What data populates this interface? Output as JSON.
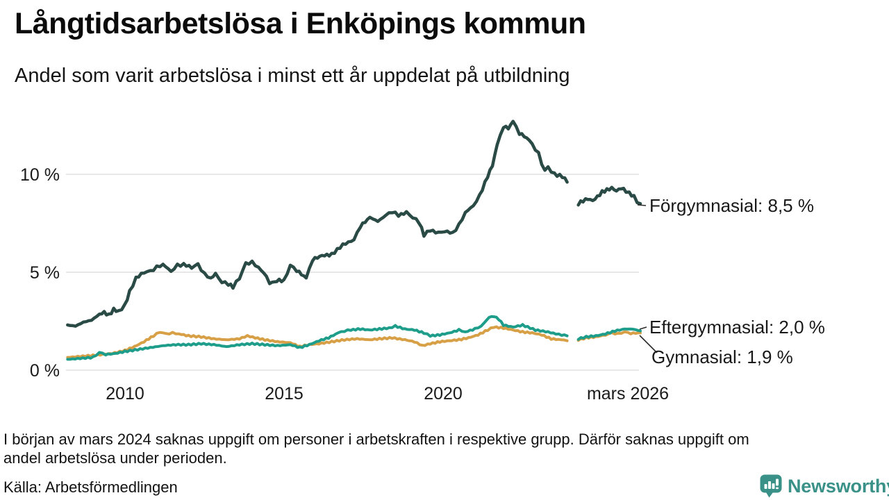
{
  "chart_data": {
    "type": "line",
    "title": "Långtidsarbetslösa i Enköpings kommun",
    "subtitle": "Andel som varit arbetslösa i minst ett år uppdelat på utbildning",
    "grid": true,
    "legend_position": "end-of-line-labels",
    "x_axis": {
      "range": [
        2008.15,
        2026.2
      ],
      "ticks": [
        {
          "label": "2010",
          "year": 2010
        },
        {
          "label": "2015",
          "year": 2015
        },
        {
          "label": "2020",
          "year": 2020
        },
        {
          "label": "mars 2026",
          "year": 2025.8
        }
      ]
    },
    "y_axis": {
      "range": [
        0,
        12.8
      ],
      "ticks": [
        {
          "label": "0 %",
          "value": 0
        },
        {
          "label": "5 %",
          "value": 5
        },
        {
          "label": "10 %",
          "value": 10
        }
      ]
    },
    "gap": {
      "from": 2023.9,
      "to": 2024.25
    },
    "wiggle": [
      0.07,
      0.035,
      0.035
    ],
    "series": [
      {
        "name": "Förgymnasial",
        "color": "#2a4a45",
        "end_label": "Förgymnasial: 8,5 %",
        "end_value": 8.5,
        "segments": [
          [
            [
              2008.2,
              2.3
            ],
            [
              2008.45,
              2.25
            ],
            [
              2008.7,
              2.45
            ],
            [
              2008.95,
              2.55
            ],
            [
              2009.2,
              2.85
            ],
            [
              2009.35,
              2.95
            ],
            [
              2009.5,
              2.8
            ],
            [
              2009.65,
              3.1
            ],
            [
              2009.8,
              3.0
            ],
            [
              2010.0,
              3.3
            ],
            [
              2010.15,
              4.0
            ],
            [
              2010.35,
              4.7
            ],
            [
              2010.6,
              5.0
            ],
            [
              2010.8,
              5.05
            ],
            [
              2011.0,
              5.25
            ],
            [
              2011.2,
              5.4
            ],
            [
              2011.45,
              5.05
            ],
            [
              2011.65,
              5.35
            ],
            [
              2011.85,
              5.4
            ],
            [
              2012.1,
              5.25
            ],
            [
              2012.3,
              5.4
            ],
            [
              2012.5,
              4.9
            ],
            [
              2012.7,
              4.7
            ],
            [
              2012.85,
              4.9
            ],
            [
              2013.05,
              4.5
            ],
            [
              2013.25,
              4.4
            ],
            [
              2013.4,
              4.25
            ],
            [
              2013.6,
              4.7
            ],
            [
              2013.8,
              5.45
            ],
            [
              2014.0,
              5.5
            ],
            [
              2014.2,
              5.25
            ],
            [
              2014.45,
              4.8
            ],
            [
              2014.55,
              4.45
            ],
            [
              2014.7,
              4.5
            ],
            [
              2014.85,
              4.6
            ],
            [
              2015.0,
              4.55
            ],
            [
              2015.2,
              5.35
            ],
            [
              2015.4,
              5.1
            ],
            [
              2015.7,
              4.7
            ],
            [
              2015.9,
              5.65
            ],
            [
              2016.2,
              5.85
            ],
            [
              2016.5,
              5.9
            ],
            [
              2016.85,
              6.4
            ],
            [
              2017.2,
              6.65
            ],
            [
              2017.4,
              7.35
            ],
            [
              2017.7,
              7.8
            ],
            [
              2017.95,
              7.6
            ],
            [
              2018.2,
              7.9
            ],
            [
              2018.4,
              8.1
            ],
            [
              2018.6,
              7.9
            ],
            [
              2018.85,
              8.05
            ],
            [
              2019.05,
              7.8
            ],
            [
              2019.25,
              7.55
            ],
            [
              2019.4,
              6.9
            ],
            [
              2019.6,
              7.15
            ],
            [
              2019.85,
              7.0
            ],
            [
              2020.05,
              7.1
            ],
            [
              2020.3,
              7.0
            ],
            [
              2020.5,
              7.4
            ],
            [
              2020.7,
              8.05
            ],
            [
              2020.95,
              8.4
            ],
            [
              2021.15,
              8.9
            ],
            [
              2021.4,
              9.9
            ],
            [
              2021.55,
              10.45
            ],
            [
              2021.7,
              11.5
            ],
            [
              2021.9,
              12.45
            ],
            [
              2022.05,
              12.35
            ],
            [
              2022.2,
              12.7
            ],
            [
              2022.4,
              12.1
            ],
            [
              2022.55,
              11.95
            ],
            [
              2022.7,
              11.75
            ],
            [
              2022.9,
              11.3
            ],
            [
              2023.0,
              11.05
            ],
            [
              2023.1,
              10.55
            ],
            [
              2023.2,
              10.2
            ],
            [
              2023.3,
              10.35
            ],
            [
              2023.5,
              10.0
            ],
            [
              2023.75,
              9.9
            ],
            [
              2023.9,
              9.6
            ]
          ],
          [
            [
              2024.25,
              8.5
            ],
            [
              2024.4,
              8.65
            ],
            [
              2024.55,
              8.75
            ],
            [
              2024.7,
              8.65
            ],
            [
              2024.85,
              8.85
            ],
            [
              2025.0,
              9.1
            ],
            [
              2025.15,
              9.2
            ],
            [
              2025.3,
              9.3
            ],
            [
              2025.45,
              9.15
            ],
            [
              2025.6,
              9.3
            ],
            [
              2025.75,
              9.15
            ],
            [
              2025.85,
              9.05
            ],
            [
              2026.0,
              8.85
            ],
            [
              2026.1,
              8.6
            ],
            [
              2026.2,
              8.5
            ]
          ]
        ]
      },
      {
        "name": "Eftergymnasial",
        "color": "#1d9d8a",
        "end_label": "Eftergymnasial: 2,0 %",
        "end_value": 2.0,
        "segments": [
          [
            [
              2008.2,
              0.55
            ],
            [
              2008.6,
              0.6
            ],
            [
              2009.0,
              0.65
            ],
            [
              2009.2,
              0.9
            ],
            [
              2009.4,
              0.8
            ],
            [
              2009.7,
              0.85
            ],
            [
              2010.0,
              0.95
            ],
            [
              2010.4,
              1.05
            ],
            [
              2010.8,
              1.15
            ],
            [
              2011.2,
              1.25
            ],
            [
              2011.6,
              1.3
            ],
            [
              2012.0,
              1.3
            ],
            [
              2012.4,
              1.35
            ],
            [
              2012.8,
              1.3
            ],
            [
              2013.2,
              1.2
            ],
            [
              2013.6,
              1.3
            ],
            [
              2014.0,
              1.35
            ],
            [
              2014.4,
              1.3
            ],
            [
              2014.8,
              1.25
            ],
            [
              2015.2,
              1.3
            ],
            [
              2015.5,
              1.15
            ],
            [
              2015.8,
              1.3
            ],
            [
              2016.1,
              1.5
            ],
            [
              2016.4,
              1.65
            ],
            [
              2016.7,
              1.9
            ],
            [
              2016.9,
              2.0
            ],
            [
              2017.1,
              2.05
            ],
            [
              2017.4,
              2.1
            ],
            [
              2017.7,
              2.05
            ],
            [
              2018.0,
              2.1
            ],
            [
              2018.3,
              2.15
            ],
            [
              2018.5,
              2.25
            ],
            [
              2018.8,
              2.1
            ],
            [
              2019.1,
              2.05
            ],
            [
              2019.4,
              1.9
            ],
            [
              2019.6,
              1.75
            ],
            [
              2019.9,
              1.8
            ],
            [
              2020.2,
              1.9
            ],
            [
              2020.5,
              2.05
            ],
            [
              2020.7,
              1.95
            ],
            [
              2021.0,
              2.1
            ],
            [
              2021.2,
              2.25
            ],
            [
              2021.45,
              2.7
            ],
            [
              2021.6,
              2.75
            ],
            [
              2021.75,
              2.6
            ],
            [
              2021.9,
              2.3
            ],
            [
              2022.2,
              2.2
            ],
            [
              2022.5,
              2.3
            ],
            [
              2022.9,
              2.05
            ],
            [
              2023.3,
              1.95
            ],
            [
              2023.55,
              1.85
            ],
            [
              2023.9,
              1.75
            ]
          ],
          [
            [
              2024.25,
              1.6
            ],
            [
              2024.5,
              1.7
            ],
            [
              2024.8,
              1.75
            ],
            [
              2025.1,
              1.85
            ],
            [
              2025.4,
              2.0
            ],
            [
              2025.7,
              2.1
            ],
            [
              2025.95,
              2.1
            ],
            [
              2026.2,
              2.0
            ]
          ]
        ]
      },
      {
        "name": "Gymnasial",
        "color": "#d7a047",
        "end_label": "Gymnasial: 1,9 %",
        "end_value": 1.9,
        "segments": [
          [
            [
              2008.2,
              0.65
            ],
            [
              2008.6,
              0.7
            ],
            [
              2009.0,
              0.75
            ],
            [
              2009.3,
              0.8
            ],
            [
              2009.6,
              0.85
            ],
            [
              2010.0,
              1.0
            ],
            [
              2010.3,
              1.2
            ],
            [
              2010.6,
              1.45
            ],
            [
              2010.9,
              1.75
            ],
            [
              2011.1,
              1.95
            ],
            [
              2011.3,
              1.85
            ],
            [
              2011.5,
              1.9
            ],
            [
              2011.7,
              1.85
            ],
            [
              2012.0,
              1.75
            ],
            [
              2012.4,
              1.7
            ],
            [
              2012.8,
              1.6
            ],
            [
              2013.2,
              1.55
            ],
            [
              2013.6,
              1.6
            ],
            [
              2013.85,
              1.75
            ],
            [
              2014.1,
              1.65
            ],
            [
              2014.4,
              1.55
            ],
            [
              2014.8,
              1.45
            ],
            [
              2015.2,
              1.4
            ],
            [
              2015.5,
              1.2
            ],
            [
              2015.8,
              1.3
            ],
            [
              2016.1,
              1.35
            ],
            [
              2016.5,
              1.45
            ],
            [
              2016.9,
              1.55
            ],
            [
              2017.3,
              1.6
            ],
            [
              2017.7,
              1.55
            ],
            [
              2018.0,
              1.6
            ],
            [
              2018.4,
              1.65
            ],
            [
              2018.8,
              1.55
            ],
            [
              2019.1,
              1.45
            ],
            [
              2019.35,
              1.25
            ],
            [
              2019.6,
              1.35
            ],
            [
              2019.9,
              1.45
            ],
            [
              2020.2,
              1.5
            ],
            [
              2020.5,
              1.55
            ],
            [
              2020.8,
              1.65
            ],
            [
              2021.1,
              1.8
            ],
            [
              2021.4,
              2.05
            ],
            [
              2021.6,
              2.2
            ],
            [
              2021.9,
              2.15
            ],
            [
              2022.2,
              2.05
            ],
            [
              2022.5,
              1.95
            ],
            [
              2022.8,
              1.9
            ],
            [
              2023.1,
              1.8
            ],
            [
              2023.4,
              1.6
            ],
            [
              2023.7,
              1.55
            ],
            [
              2023.9,
              1.5
            ]
          ],
          [
            [
              2024.25,
              1.55
            ],
            [
              2024.5,
              1.65
            ],
            [
              2024.8,
              1.7
            ],
            [
              2025.1,
              1.8
            ],
            [
              2025.3,
              1.9
            ],
            [
              2025.5,
              1.85
            ],
            [
              2025.7,
              1.95
            ],
            [
              2025.9,
              1.88
            ],
            [
              2026.2,
              1.9
            ]
          ]
        ]
      }
    ]
  },
  "footnote": {
    "lines": [
      "I början av mars 2024 saknas uppgift om personer i arbetskraften i respektive grupp. Därför saknas uppgift om",
      "andel arbetslösa under perioden."
    ]
  },
  "source": "Källa: Arbetsförmedlingen",
  "branding": {
    "name": "Newsworthy",
    "color": "#3a9188"
  }
}
